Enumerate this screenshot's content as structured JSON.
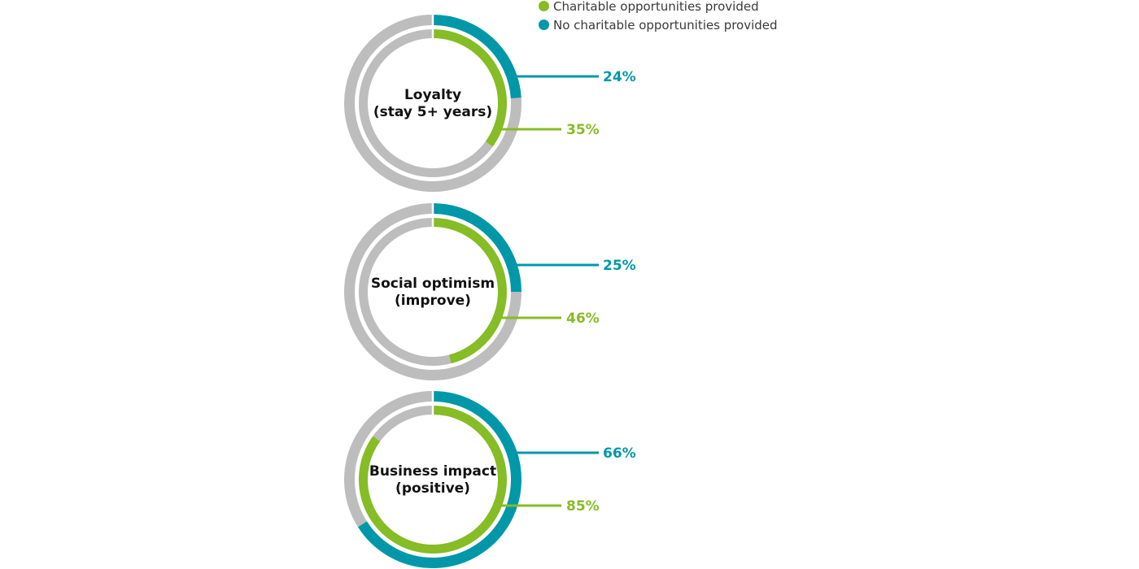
{
  "colors": {
    "green": "#86bc25",
    "teal": "#0097a9",
    "gray": "#bdbdbd",
    "text": "#111111"
  },
  "legend": [
    {
      "label": "Charitable opportunities provided",
      "color": "#86bc25"
    },
    {
      "label": "No charitable opportunities provided",
      "color": "#0097a9"
    }
  ],
  "chart_data": {
    "type": "donut",
    "legend_position": "top-right",
    "series_names": [
      "Charitable opportunities provided",
      "No charitable opportunities provided"
    ],
    "categories": [
      {
        "label_lines": [
          "Loyalty",
          "(stay 5+ years)"
        ],
        "charitable": 35,
        "no_charitable": 24,
        "charitable_label": "35%",
        "no_charitable_label": "24%"
      },
      {
        "label_lines": [
          "Social optimism",
          "(improve)"
        ],
        "charitable": 46,
        "no_charitable": 25,
        "charitable_label": "46%",
        "no_charitable_label": "25%"
      },
      {
        "label_lines": [
          "Business impact",
          "(positive)"
        ],
        "charitable": 85,
        "no_charitable": 66,
        "charitable_label": "85%",
        "no_charitable_label": "66%"
      }
    ]
  }
}
